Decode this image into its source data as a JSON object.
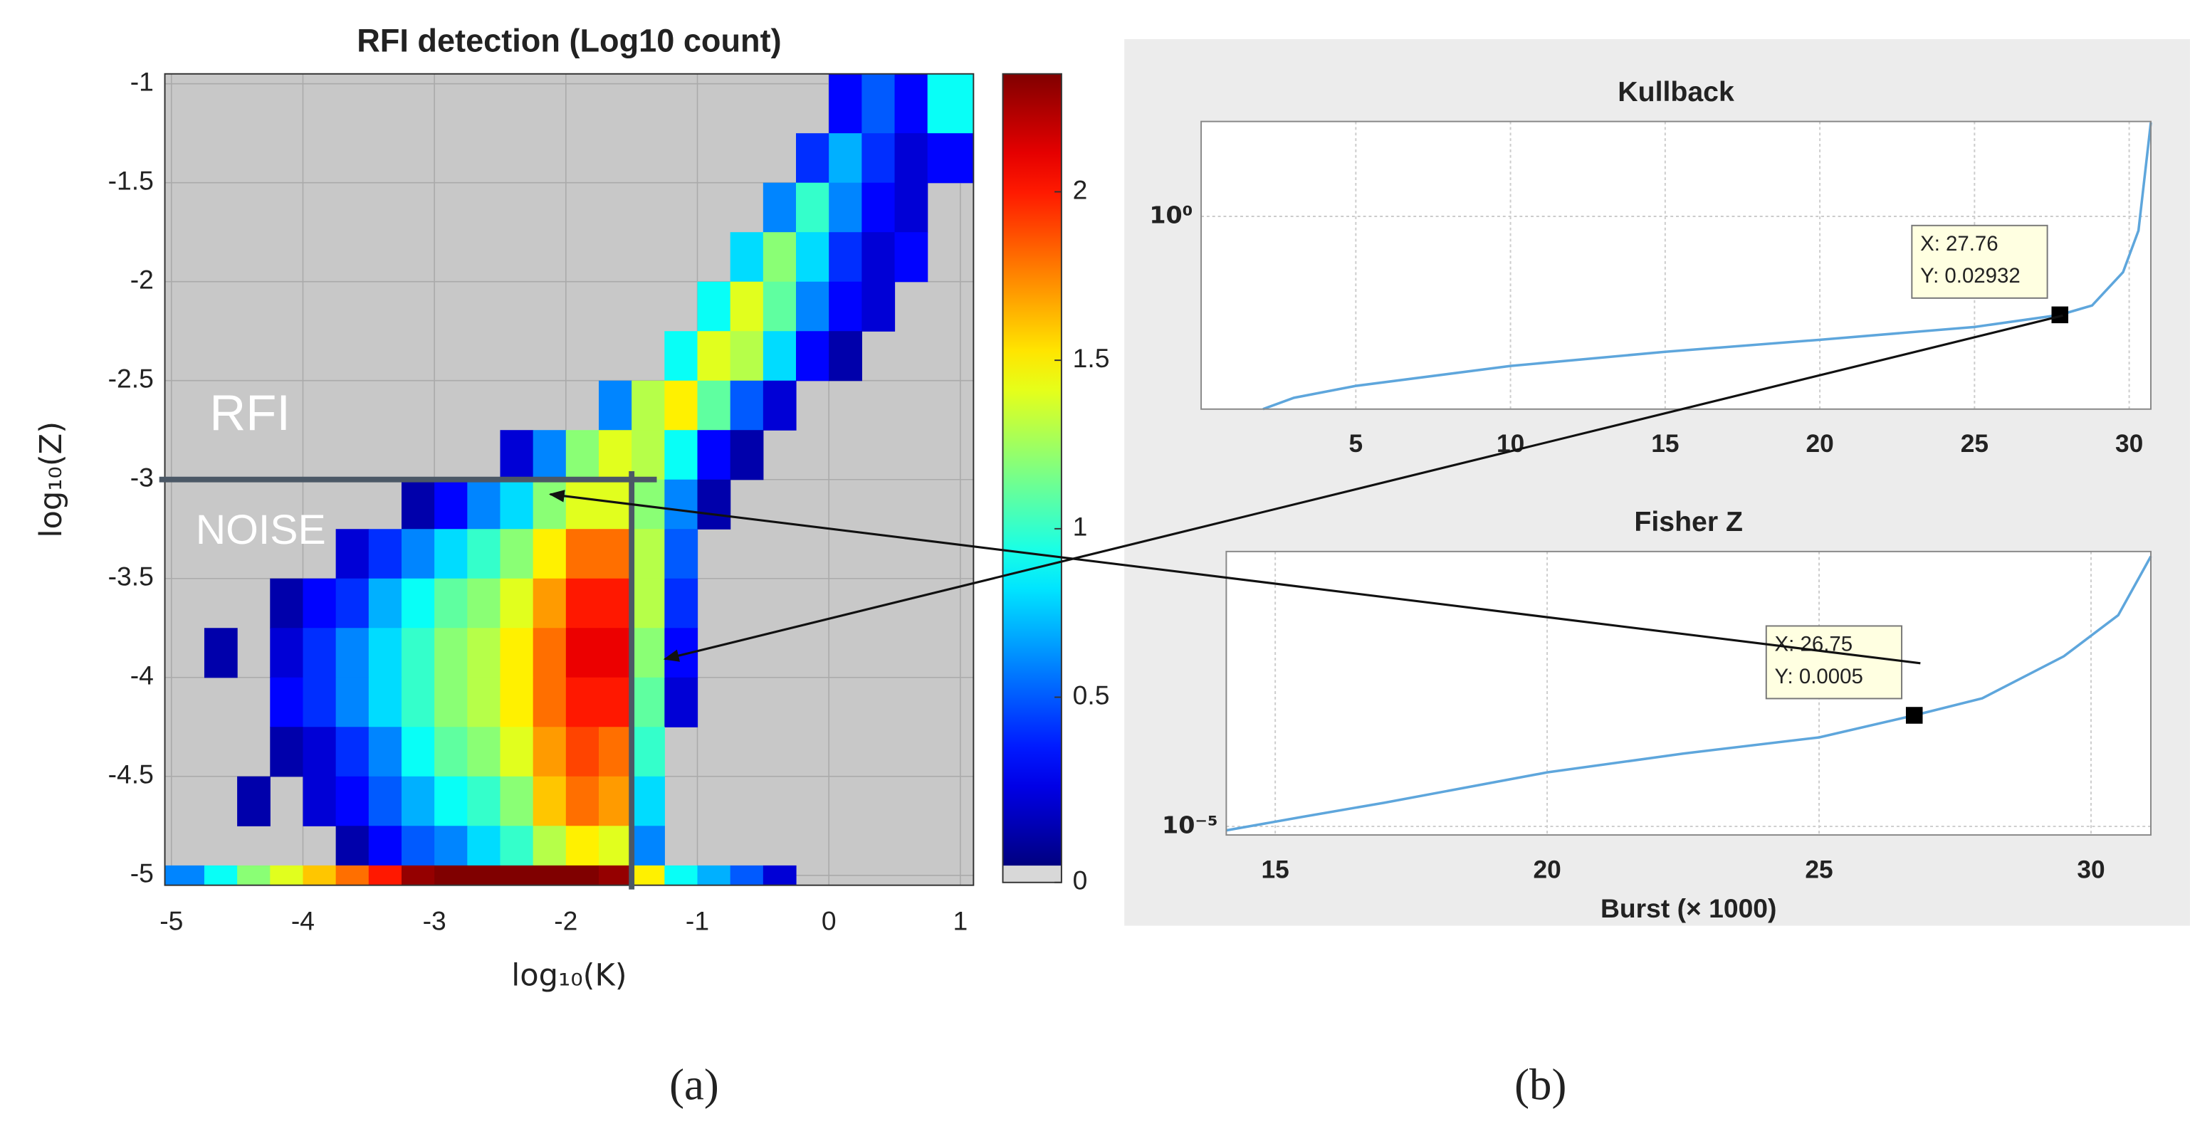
{
  "chart_data": [
    {
      "type": "heatmap",
      "title": "RFI detection (Log10 count)",
      "xlabel": "log₁₀(K)",
      "ylabel": "log₁₀(Z)",
      "xbins": [
        -5.05,
        -4.75,
        -4.5,
        -4.25,
        -4,
        -3.75,
        -3.5,
        -3.25,
        -3,
        -2.75,
        -2.5,
        -2.25,
        -2,
        -1.75,
        -1.5,
        -1.25,
        -1,
        -0.75,
        -0.5,
        -0.25,
        0,
        0.25,
        0.5,
        0.75,
        1.1
      ],
      "ybins": [
        -0.95,
        -1.25,
        -1.5,
        -1.75,
        -2,
        -2.25,
        -2.5,
        -2.75,
        -3,
        -3.25,
        -3.5,
        -3.75,
        -4,
        -4.25,
        -4.5,
        -4.75,
        -4.95,
        -5.05
      ],
      "z": [
        [
          null,
          null,
          null,
          null,
          null,
          null,
          null,
          null,
          null,
          null,
          null,
          null,
          null,
          null,
          null,
          null,
          null,
          null,
          null,
          null,
          0.3,
          0.5,
          0.3,
          0.9
        ],
        [
          null,
          null,
          null,
          null,
          null,
          null,
          null,
          null,
          null,
          null,
          null,
          null,
          null,
          null,
          null,
          null,
          null,
          null,
          null,
          0.4,
          0.7,
          0.4,
          0.2,
          0.3
        ],
        [
          null,
          null,
          null,
          null,
          null,
          null,
          null,
          null,
          null,
          null,
          null,
          null,
          null,
          null,
          null,
          null,
          null,
          null,
          0.6,
          1.0,
          0.6,
          0.3,
          0.2,
          null
        ],
        [
          null,
          null,
          null,
          null,
          null,
          null,
          null,
          null,
          null,
          null,
          null,
          null,
          null,
          null,
          null,
          null,
          null,
          0.8,
          1.2,
          0.8,
          0.4,
          0.2,
          0.3,
          null
        ],
        [
          null,
          null,
          null,
          null,
          null,
          null,
          null,
          null,
          null,
          null,
          null,
          null,
          null,
          null,
          null,
          null,
          0.9,
          1.4,
          1.1,
          0.6,
          0.3,
          0.2,
          null,
          null
        ],
        [
          null,
          null,
          null,
          null,
          null,
          null,
          null,
          null,
          null,
          null,
          null,
          null,
          null,
          null,
          null,
          0.9,
          1.4,
          1.3,
          0.8,
          0.3,
          0.1,
          null,
          null,
          null
        ],
        [
          null,
          null,
          null,
          null,
          null,
          null,
          null,
          null,
          null,
          null,
          null,
          null,
          null,
          0.6,
          1.3,
          1.5,
          1.1,
          0.5,
          0.2,
          null,
          null,
          null,
          null,
          null
        ],
        [
          null,
          null,
          null,
          null,
          null,
          null,
          null,
          null,
          null,
          null,
          0.2,
          0.6,
          1.2,
          1.4,
          1.3,
          0.9,
          0.3,
          0.1,
          null,
          null,
          null,
          null,
          null,
          null
        ],
        [
          null,
          null,
          null,
          null,
          null,
          null,
          null,
          0.1,
          0.3,
          0.6,
          0.8,
          1.2,
          1.4,
          1.4,
          1.2,
          0.6,
          0.1,
          null,
          null,
          null,
          null,
          null,
          null,
          null
        ],
        [
          null,
          null,
          null,
          null,
          null,
          0.2,
          0.4,
          0.6,
          0.8,
          1.0,
          1.2,
          1.5,
          1.8,
          1.8,
          1.3,
          0.5,
          null,
          null,
          null,
          null,
          null,
          null,
          null,
          null
        ],
        [
          null,
          null,
          null,
          0.1,
          0.3,
          0.4,
          0.7,
          0.9,
          1.1,
          1.2,
          1.4,
          1.7,
          2.0,
          2.0,
          1.3,
          0.4,
          null,
          null,
          null,
          null,
          null,
          null,
          null,
          null
        ],
        [
          null,
          0.1,
          null,
          0.2,
          0.4,
          0.6,
          0.8,
          1.0,
          1.2,
          1.3,
          1.5,
          1.8,
          2.1,
          2.1,
          1.2,
          0.3,
          null,
          null,
          null,
          null,
          null,
          null,
          null,
          null
        ],
        [
          null,
          null,
          null,
          0.3,
          0.4,
          0.6,
          0.8,
          1.0,
          1.2,
          1.3,
          1.5,
          1.8,
          2.0,
          2.0,
          1.1,
          0.2,
          null,
          null,
          null,
          null,
          null,
          null,
          null,
          null
        ],
        [
          null,
          null,
          null,
          0.1,
          0.2,
          0.4,
          0.6,
          0.9,
          1.1,
          1.2,
          1.4,
          1.7,
          1.9,
          1.8,
          1.0,
          null,
          null,
          null,
          null,
          null,
          null,
          null,
          null,
          null
        ],
        [
          null,
          null,
          0.1,
          null,
          0.2,
          0.3,
          0.5,
          0.7,
          0.9,
          1.0,
          1.2,
          1.6,
          1.8,
          1.7,
          0.8,
          null,
          null,
          null,
          null,
          null,
          null,
          null,
          null,
          null
        ],
        [
          null,
          null,
          null,
          null,
          null,
          0.1,
          0.3,
          0.5,
          0.6,
          0.8,
          1.0,
          1.3,
          1.5,
          1.4,
          0.6,
          null,
          null,
          null,
          null,
          null,
          null,
          null,
          null,
          null
        ],
        [
          0.6,
          0.9,
          1.2,
          1.4,
          1.6,
          1.8,
          2.0,
          2.3,
          2.35,
          2.35,
          2.35,
          2.35,
          2.35,
          2.3,
          1.5,
          0.9,
          0.7,
          0.5,
          0.2,
          null,
          null,
          null,
          null,
          null
        ]
      ],
      "xlim": [
        -5.05,
        1.1
      ],
      "ylim": [
        -5.05,
        -0.95
      ],
      "xticks": [
        -5,
        -4,
        -3,
        -2,
        -1,
        0,
        1
      ],
      "yticks": [
        -1,
        -1.5,
        -2,
        -2.5,
        -3,
        -3.5,
        -4,
        -4.5,
        -5
      ],
      "clim": [
        0,
        2.35
      ],
      "cticks": [
        0,
        0.5,
        1,
        1.5,
        2
      ],
      "colormap": "jet",
      "background": "#c8c8c8",
      "grid": true,
      "thresholds": {
        "z": -3,
        "k": -1.5
      },
      "annotations": [
        "RFI",
        "NOISE"
      ]
    },
    {
      "type": "line",
      "title": "Kullback",
      "yscale": "log",
      "grid": true,
      "xlim": [
        0,
        30.7
      ],
      "xticks": [
        5,
        10,
        15,
        20,
        25,
        30
      ],
      "ylim": [
        0.001,
        30
      ],
      "yticks": [
        {
          "value": 1,
          "label": "10⁰"
        }
      ],
      "series": [
        {
          "color": "#5ea6dc",
          "x": [
            2,
            3,
            5,
            10,
            15,
            20,
            25,
            27.76,
            28.8,
            29.8,
            30.3,
            30.7
          ],
          "values": [
            0.001,
            0.0015,
            0.0023,
            0.0047,
            0.0078,
            0.012,
            0.019,
            0.02932,
            0.041,
            0.135,
            0.6,
            29
          ]
        }
      ],
      "data_tip": {
        "x": 27.76,
        "y": 0.02932,
        "labels": [
          "X: 27.76",
          "Y: 0.02932"
        ]
      }
    },
    {
      "type": "line",
      "title": "Fisher Z",
      "xlabel": "Burst (× 1000)",
      "yscale": "log",
      "grid": true,
      "xlim": [
        14.1,
        31.1
      ],
      "xticks": [
        15,
        20,
        25,
        30
      ],
      "ylim": [
        7.4e-06,
        0.16
      ],
      "yticks": [
        {
          "value": 1e-05,
          "label": "10⁻⁵"
        }
      ],
      "series": [
        {
          "color": "#5ea6dc",
          "x": [
            14.1,
            15.5,
            17,
            20,
            22.5,
            25,
            26.75,
            28,
            29.5,
            30.5,
            31.1
          ],
          "values": [
            8.7e-06,
            1.4e-05,
            2.3e-05,
            6.7e-05,
            0.00013,
            0.00023,
            0.0005,
            0.00091,
            0.004,
            0.017,
            0.135
          ]
        }
      ],
      "data_tip": {
        "x": 26.75,
        "y": 0.0005,
        "labels": [
          "X: 26.75",
          "Y: 0.0005"
        ]
      }
    }
  ],
  "panel_labels": [
    "(a)",
    "(b)"
  ]
}
